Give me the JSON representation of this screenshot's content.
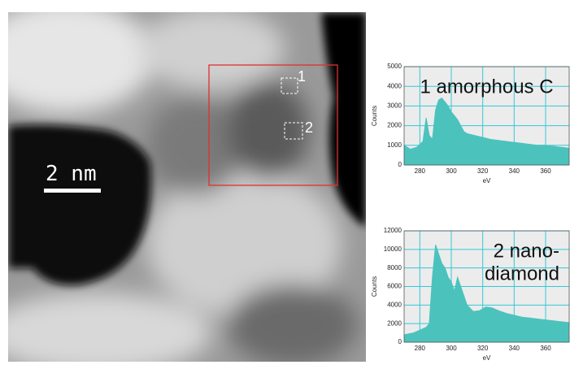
{
  "image": {
    "scale_bar": "2 nm",
    "regions": [
      "1",
      "2"
    ]
  },
  "chart_data": [
    {
      "type": "area",
      "annotation": [
        "1 amorphous C"
      ],
      "x_label": "eV",
      "y_label": "Counts",
      "color": "#4cc2bd",
      "grid": true,
      "x": [
        270,
        274,
        278,
        282,
        284,
        286,
        288,
        290,
        292,
        294,
        296,
        298,
        300,
        302,
        304,
        306,
        308,
        310,
        315,
        320,
        325,
        330,
        335,
        340,
        345,
        350,
        355,
        360,
        365,
        370,
        375
      ],
      "series": [
        {
          "values": [
            1000,
            800,
            900,
            1200,
            2400,
            1500,
            1300,
            2800,
            3300,
            3400,
            3200,
            3000,
            2700,
            2500,
            2300,
            2000,
            1700,
            1600,
            1500,
            1400,
            1300,
            1250,
            1200,
            1150,
            1100,
            1050,
            1000,
            1000,
            950,
            900,
            850
          ]
        }
      ],
      "xlim": [
        270,
        375
      ],
      "xticks": [
        280,
        300,
        320,
        340,
        360
      ],
      "ylim": [
        0,
        5000
      ],
      "yticks": [
        0,
        1000,
        2000,
        3000,
        4000,
        5000
      ]
    },
    {
      "type": "area",
      "annotation": [
        "2 nano-",
        "diamond"
      ],
      "x_label": "eV",
      "y_label": "Counts",
      "color": "#4cc2bd",
      "grid": true,
      "x": [
        270,
        276,
        280,
        284,
        286,
        288,
        290,
        292,
        294,
        296,
        298,
        300,
        302,
        304,
        306,
        308,
        310,
        314,
        318,
        322,
        326,
        330,
        335,
        340,
        345,
        350,
        355,
        360,
        365,
        370,
        375
      ],
      "series": [
        {
          "values": [
            800,
            1000,
            1300,
            1600,
            2000,
            7000,
            10500,
            9500,
            8500,
            8000,
            7000,
            6500,
            5500,
            7000,
            6000,
            5000,
            4000,
            3300,
            3400,
            3800,
            3700,
            3400,
            3100,
            2900,
            2700,
            2600,
            2500,
            2400,
            2300,
            2200,
            2100
          ]
        }
      ],
      "xlim": [
        270,
        375
      ],
      "xticks": [
        280,
        300,
        320,
        340,
        360
      ],
      "ylim": [
        0,
        12000
      ],
      "yticks": [
        0,
        2000,
        4000,
        6000,
        8000,
        10000,
        12000
      ]
    }
  ]
}
